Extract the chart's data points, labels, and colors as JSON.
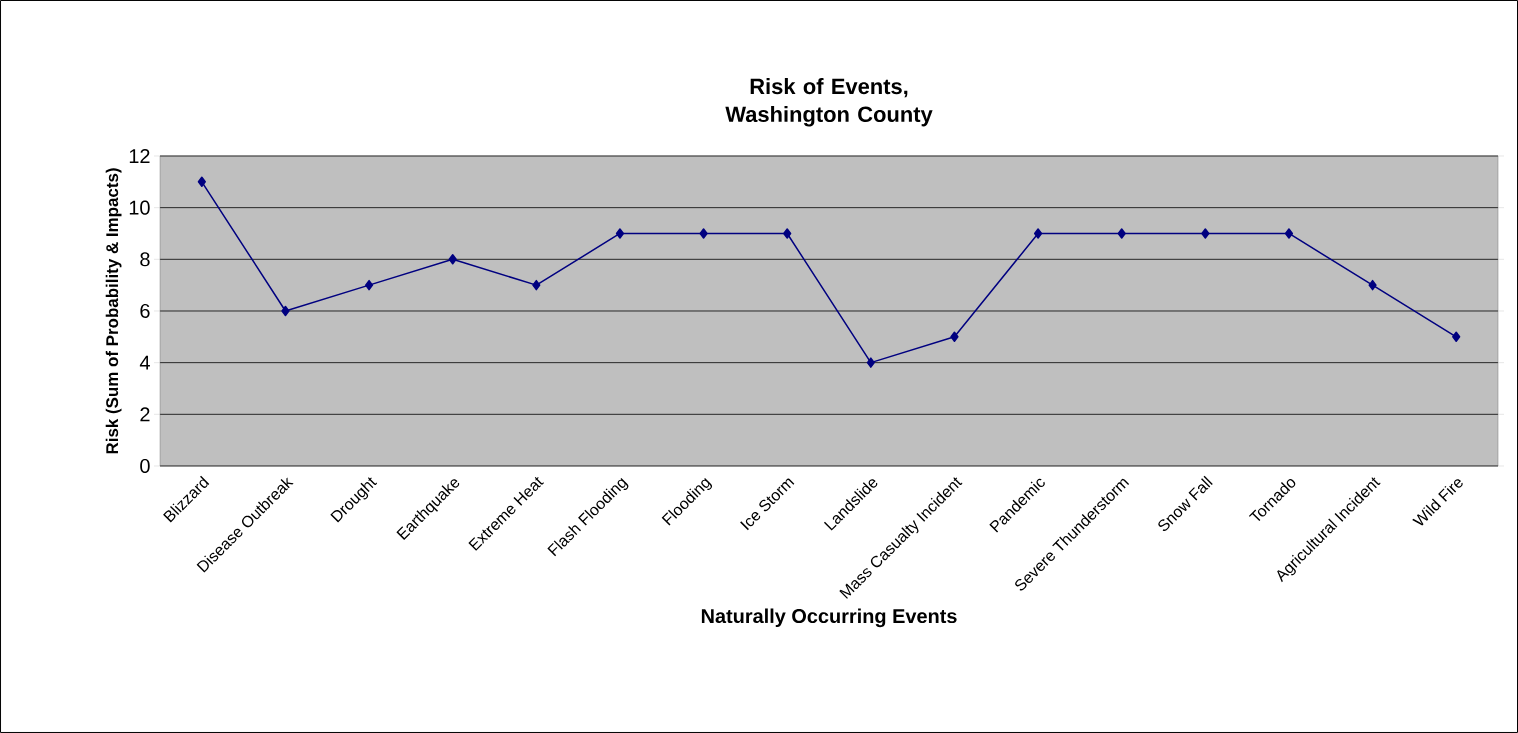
{
  "chart_data": {
    "type": "line",
    "title": "Risk of Events, Washington County",
    "xlabel": "Naturally Occurring Events",
    "ylabel": "Risk (Sum of Probability & Impacts)",
    "categories": [
      "Blizzard",
      "Disease Outbreak",
      "Drought",
      "Earthquake",
      "Extreme Heat",
      "Flash Flooding",
      "Flooding",
      "Ice Storm",
      "Landslide",
      "Mass Casualty Incident",
      "Pandemic",
      "Severe Thunderstorm",
      "Snow Fall",
      "Tornado",
      "Agricultural Incident",
      "Wild Fire"
    ],
    "values": [
      11,
      6,
      7,
      8,
      7,
      9,
      9,
      9,
      4,
      5,
      9,
      9,
      9,
      9,
      7,
      5
    ],
    "color": "#000080",
    "marker": "diamond",
    "grid": "y",
    "ylim": [
      0,
      12
    ],
    "yticks": [
      0,
      2,
      4,
      6,
      8,
      10,
      12
    ]
  }
}
